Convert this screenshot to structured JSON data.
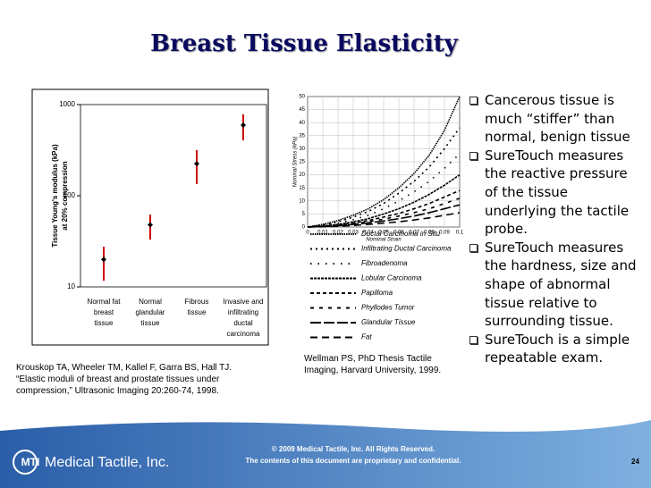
{
  "title": "Breast Tissue Elasticity",
  "chart_data": [
    {
      "type": "dot-error",
      "y_label": [
        "Tissue Young's modulus (kPa)",
        "at 20% compression"
      ],
      "categories": [
        [
          "Normal fat",
          "breast",
          "tissue"
        ],
        [
          "Normal",
          "glandular",
          "tissue"
        ],
        [
          "Fibrous",
          "tissue"
        ],
        [
          "Invasive and",
          "infiltrating",
          "ductal",
          "carcinoma"
        ]
      ],
      "values": [
        20,
        48,
        225,
        595
      ],
      "error_low": [
        11.7,
        33,
        134,
        405
      ],
      "error_high": [
        27.6,
        62,
        316,
        780
      ],
      "ylim": [
        10,
        1000
      ],
      "yticks": [
        10,
        100,
        1000
      ],
      "log_scale": true,
      "color": "#000000",
      "error_color": "#cc0000"
    },
    {
      "type": "line",
      "x_label": "Nominal Strain",
      "y_label": "Nominal Stress (kPa)",
      "x": [
        0,
        0.01,
        0.02,
        0.03,
        0.04,
        0.05,
        0.06,
        0.07,
        0.08,
        0.09,
        0.1
      ],
      "xlim": [
        0,
        0.1
      ],
      "xticks": [
        0,
        0.01,
        0.02,
        0.03,
        0.04,
        0.05,
        0.06,
        0.07,
        0.08,
        0.09,
        0.1
      ],
      "ylim": [
        0,
        50
      ],
      "yticks": [
        0,
        5,
        10,
        15,
        20,
        25,
        30,
        35,
        40,
        45,
        50
      ],
      "series": [
        {
          "name": "Ductal Carcinoma in Situ",
          "color": "#000000",
          "dash": "1.5,1",
          "values": [
            0,
            1,
            2.5,
            4.5,
            7,
            10.5,
            15,
            20.5,
            27.5,
            37,
            50
          ]
        },
        {
          "name": "Infiltrating Ductal Carcinoma",
          "color": "#000000",
          "dash": "2,4",
          "values": [
            0,
            0.8,
            2,
            3.8,
            6,
            9,
            13,
            17.5,
            23,
            30,
            38
          ]
        },
        {
          "name": "Fibroadenoma",
          "color": "#000000",
          "dash": "1.5,7",
          "values": [
            0,
            0.6,
            1.5,
            2.8,
            4.5,
            7,
            10,
            13.5,
            17.5,
            22.5,
            28
          ]
        },
        {
          "name": "Lobular Carcinoma",
          "color": "#000000",
          "dash": "3,1",
          "values": [
            0,
            0.4,
            1,
            2,
            3.2,
            5,
            7,
            9.5,
            12.5,
            16,
            20
          ]
        },
        {
          "name": "Papilloma",
          "color": "#000000",
          "dash": "4,3",
          "values": [
            0,
            0.3,
            0.8,
            1.5,
            2.5,
            3.8,
            5.2,
            7,
            9,
            11.5,
            14
          ]
        },
        {
          "name": "Phyllodes Tumor",
          "color": "#000000",
          "dash": "4,6",
          "values": [
            0,
            0.3,
            0.7,
            1.3,
            2,
            3,
            4.2,
            5.5,
            7,
            9,
            11
          ]
        },
        {
          "name": "Glandular Tissue",
          "color": "#000000",
          "dash": "12,3",
          "values": [
            0,
            0.2,
            0.5,
            1,
            1.6,
            2.3,
            3.2,
            4.2,
            5.5,
            7,
            8.5
          ]
        },
        {
          "name": "Fat",
          "color": "#000000",
          "dash": "8,5",
          "values": [
            0,
            0.1,
            0.3,
            0.6,
            1,
            1.5,
            2,
            2.7,
            3.5,
            4.5,
            5.5
          ]
        }
      ]
    }
  ],
  "bullets": [
    "Cancerous tissue is much “stiffer” than normal, benign tissue",
    "SureTouch measures the reactive pressure of the tissue underlying the tactile probe.",
    "SureTouch measures the hardness, size and shape of abnormal tissue relative to surrounding tissue.",
    "SureTouch is a simple repeatable exam."
  ],
  "citations": [
    "Krouskop TA, Wheeler TM, Kallel F, Garra BS, Hall TJ. “Elastic moduli of breast and prostate tissues under compression,” Ultrasonic Imaging 20:260-74, 1998.",
    "Wellman PS, PhD Thesis Tactile Imaging, Harvard University, 1999."
  ],
  "footer": {
    "logo": "MTI",
    "company": "Medical Tactile, Inc.",
    "copyright": "© 2009 Medical Tactile, Inc. All Rights Reserved.",
    "confidential": "The contents of this document are proprietary and confidential.",
    "page": "24"
  }
}
